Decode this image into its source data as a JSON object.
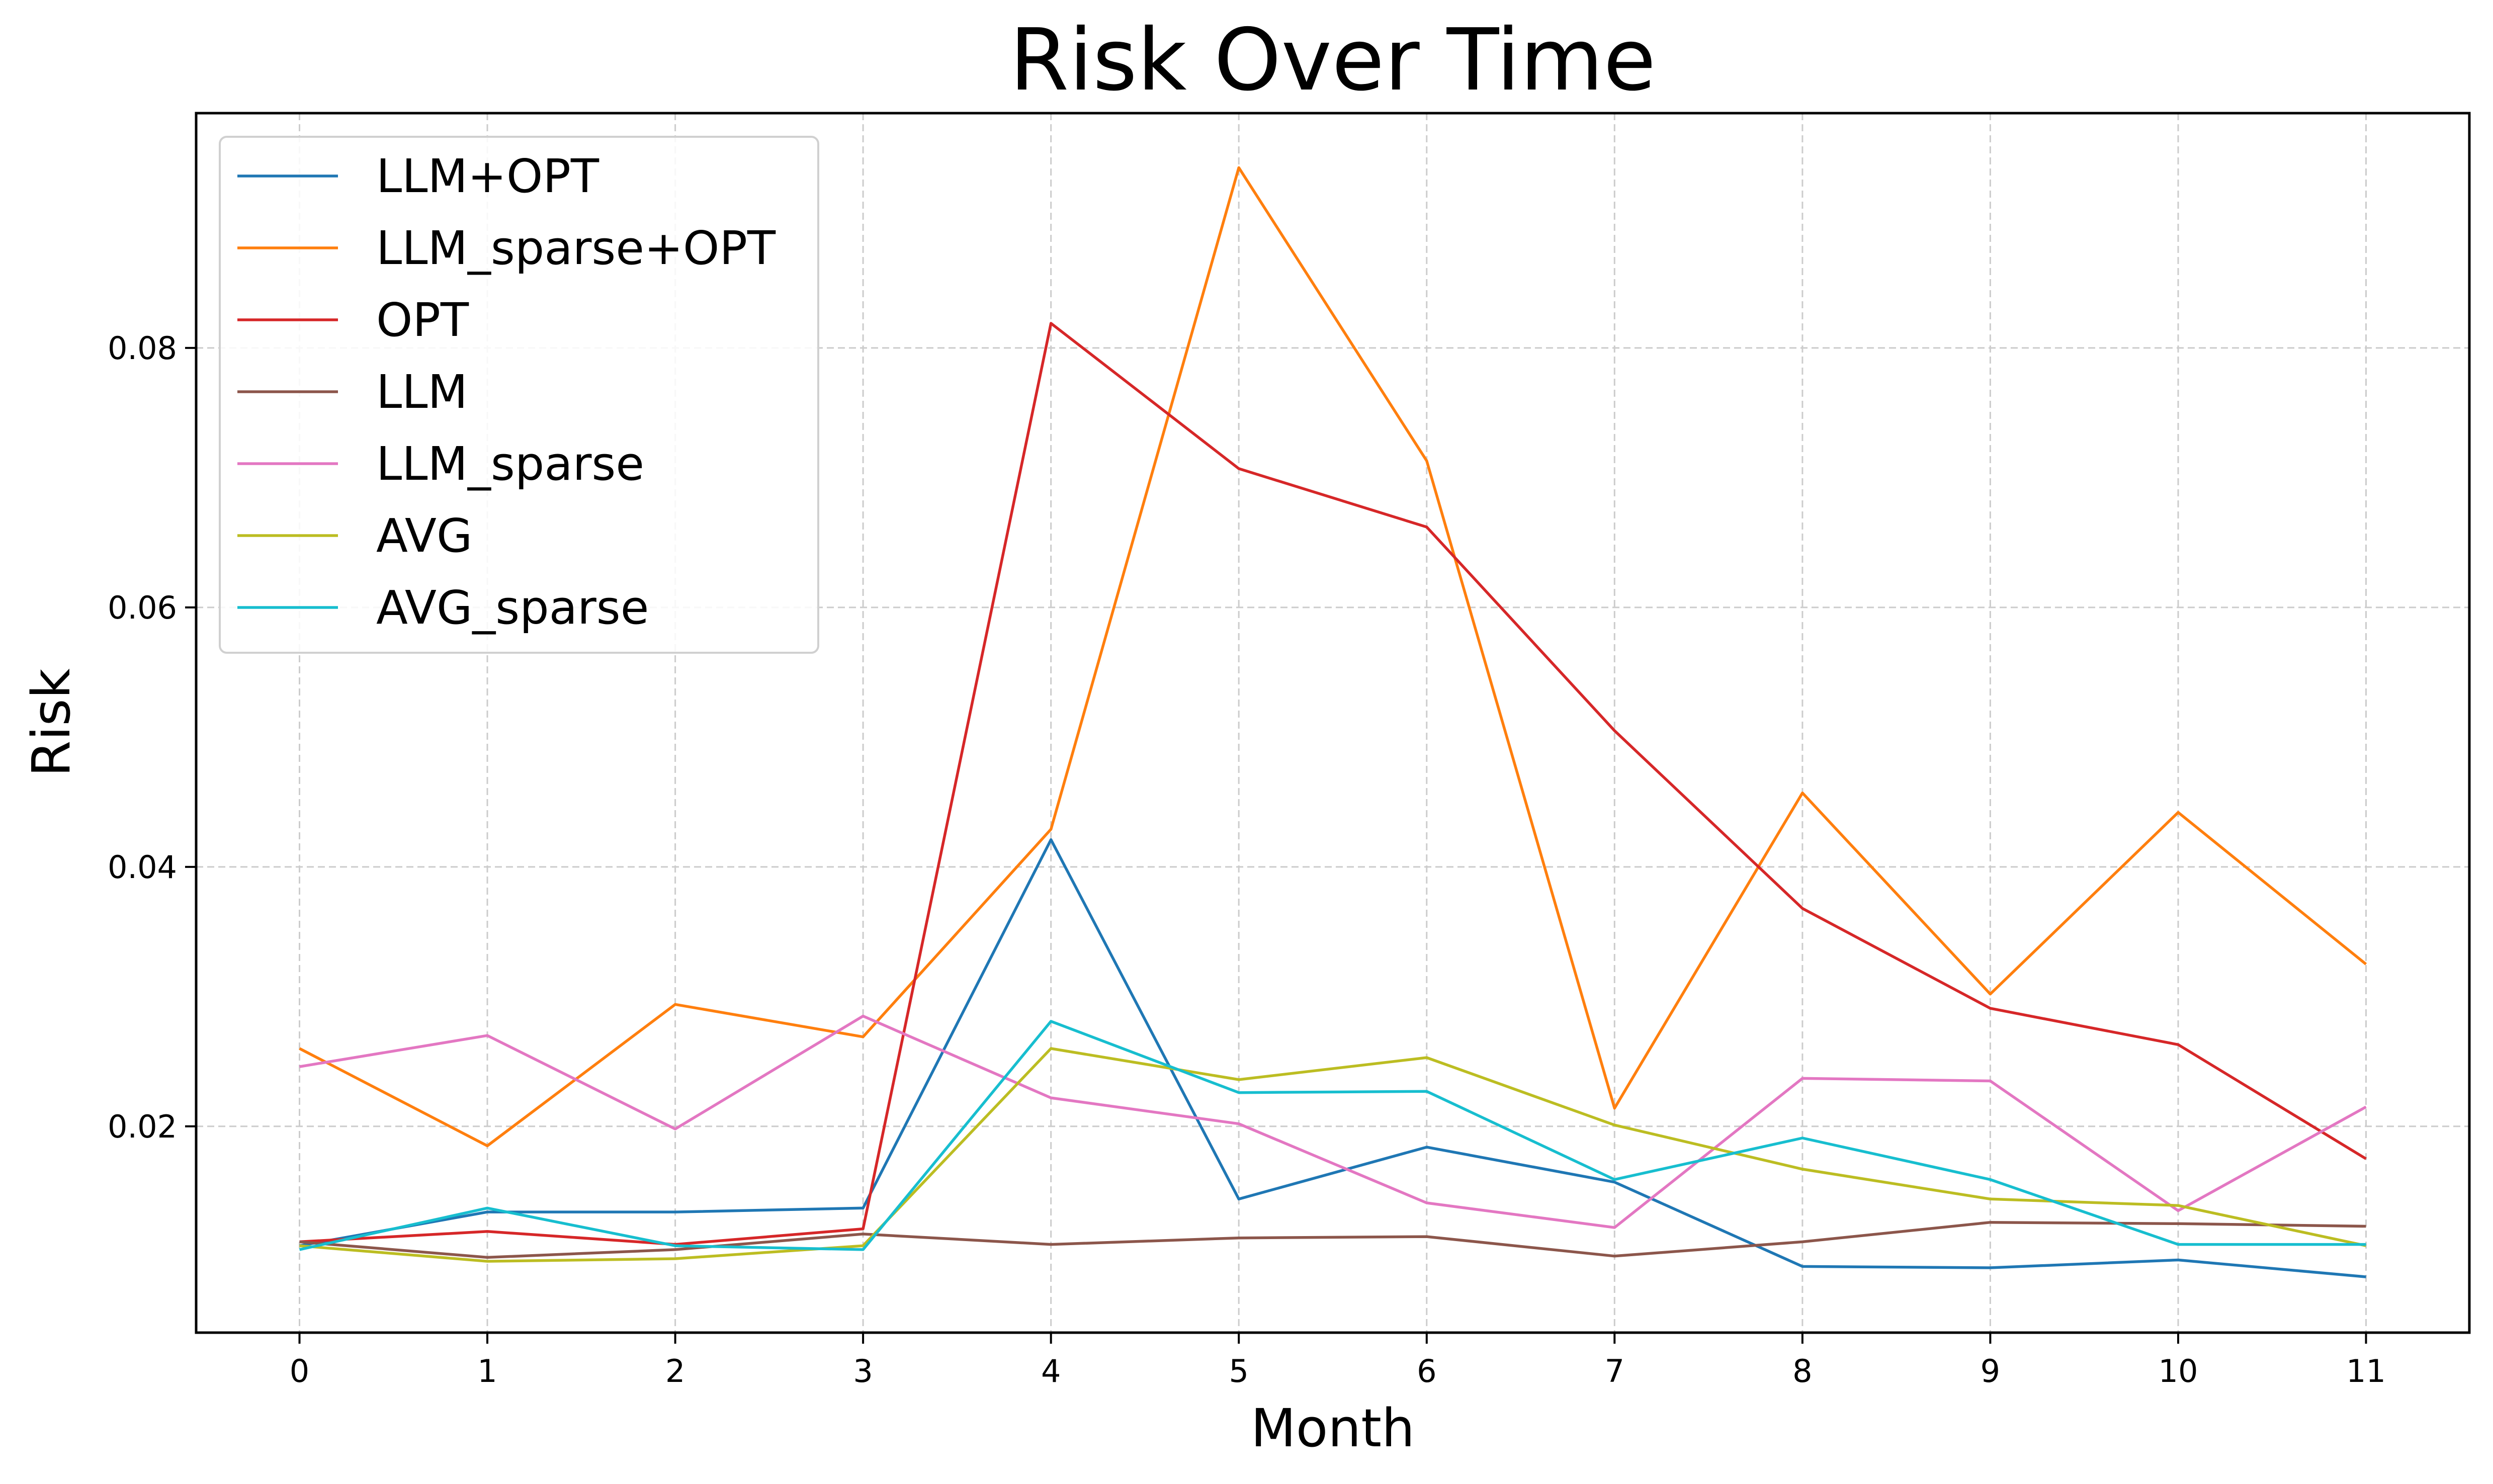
{
  "chart_data": {
    "type": "line",
    "title": "Risk Over Time",
    "xlabel": "Month",
    "ylabel": "Risk",
    "x": [
      0,
      1,
      2,
      3,
      4,
      5,
      6,
      7,
      8,
      9,
      10,
      11
    ],
    "x_tick_labels": [
      "0",
      "1",
      "2",
      "3",
      "4",
      "5",
      "6",
      "7",
      "8",
      "9",
      "10",
      "11"
    ],
    "xlim": [
      -0.55,
      11.55
    ],
    "ylim": [
      0.0041,
      0.0981
    ],
    "y_ticks": [
      0.02,
      0.04,
      0.06,
      0.08
    ],
    "y_tick_labels": [
      "0.02",
      "0.04",
      "0.06",
      "0.08"
    ],
    "grid": true,
    "legend_position": "top-left",
    "series": [
      {
        "name": "LLM+OPT",
        "color": "#1f77b4",
        "values": [
          0.0108,
          0.0134,
          0.0134,
          0.0137,
          0.0421,
          0.0144,
          0.0184,
          0.0157,
          0.0092,
          0.0091,
          0.0097,
          0.0084
        ]
      },
      {
        "name": "LLM_sparse+OPT",
        "color": "#ff7f0e",
        "values": [
          0.026,
          0.0185,
          0.0294,
          0.0269,
          0.0429,
          0.0939,
          0.0713,
          0.0214,
          0.0457,
          0.0302,
          0.0442,
          0.0325
        ]
      },
      {
        "name": "OPT",
        "color": "#d62728",
        "values": [
          0.0111,
          0.0119,
          0.0109,
          0.0121,
          0.0819,
          0.0707,
          0.0662,
          0.0505,
          0.0368,
          0.0291,
          0.0263,
          0.0175
        ]
      },
      {
        "name": "LLM",
        "color": "#8c564b",
        "values": [
          0.0111,
          0.0099,
          0.0105,
          0.0117,
          0.0109,
          0.0114,
          0.0115,
          0.01,
          0.0111,
          0.0126,
          0.0125,
          0.0123
        ]
      },
      {
        "name": "LLM_sparse",
        "color": "#e377c2",
        "values": [
          0.0246,
          0.027,
          0.0198,
          0.0285,
          0.0222,
          0.0202,
          0.0141,
          0.0122,
          0.0237,
          0.0235,
          0.0135,
          0.0215
        ]
      },
      {
        "name": "AVG",
        "color": "#bcbd22",
        "values": [
          0.0108,
          0.0096,
          0.0098,
          0.0108,
          0.026,
          0.0236,
          0.0253,
          0.0201,
          0.0167,
          0.0144,
          0.0139,
          0.0108
        ]
      },
      {
        "name": "AVG_sparse",
        "color": "#17becf",
        "values": [
          0.0105,
          0.0137,
          0.0108,
          0.0105,
          0.0281,
          0.0226,
          0.0227,
          0.0159,
          0.0191,
          0.0159,
          0.0109,
          0.0109
        ]
      }
    ]
  }
}
